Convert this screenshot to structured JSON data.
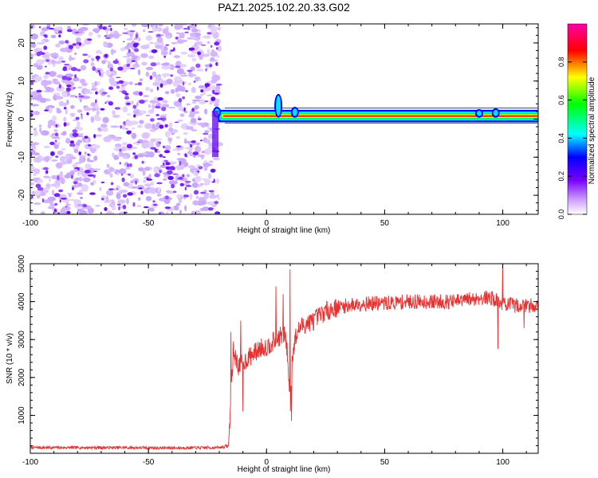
{
  "title": "PAZ1.2025.102.20.33.G02",
  "chart_data": [
    {
      "type": "heatmap",
      "xlabel": "Height of straight line (km)",
      "ylabel": "Frequency (Hz)",
      "xlim": [
        -100,
        115
      ],
      "ylim": [
        -25,
        25
      ],
      "xticks": [
        -100,
        -50,
        0,
        50,
        100
      ],
      "yticks": [
        -20,
        -10,
        0,
        10,
        20
      ],
      "noise_region_x": [
        -100,
        -20
      ],
      "signal_start_x": -21,
      "signal_line_frequency_hz": 0.8,
      "signal_bumps": [
        {
          "x": -21,
          "f": 1.8
        },
        {
          "x": 5,
          "f": 3.5
        },
        {
          "x": 12,
          "f": 1.8
        },
        {
          "x": 90,
          "f": 1.5
        },
        {
          "x": 97,
          "f": 1.6
        }
      ],
      "colorbar": {
        "label": "Normalized spectral amplitude",
        "range": [
          0,
          1
        ],
        "ticks": [
          "0.0",
          "0.2",
          "0.4",
          "0.6",
          "0.8"
        ],
        "colors": [
          "#ffffff",
          "#cc99ff",
          "#7700ff",
          "#0000ff",
          "#00ffff",
          "#00ff00",
          "#ffff00",
          "#ff0000",
          "#ff00aa"
        ]
      }
    },
    {
      "type": "line",
      "xlabel": "Height of straight line (km)",
      "ylabel": "SNR (10 * v/v)",
      "xlim": [
        -100,
        115
      ],
      "ylim": [
        0,
        5000
      ],
      "xticks": [
        -100,
        -50,
        0,
        50,
        100
      ],
      "yticks": [
        1000,
        2000,
        3000,
        4000,
        5000
      ],
      "series": [
        {
          "name": "SNR",
          "color": "#e83030",
          "x": [
            -100,
            -80,
            -60,
            -40,
            -20,
            -16,
            -15,
            -14,
            -13,
            -12,
            -10,
            -8,
            -6,
            -4,
            -2,
            0,
            2,
            4,
            6,
            8,
            9,
            10,
            11,
            12,
            14,
            16,
            20,
            25,
            30,
            40,
            50,
            60,
            70,
            80,
            85,
            90,
            95,
            100,
            105,
            110,
            115
          ],
          "y": [
            150,
            150,
            150,
            140,
            150,
            200,
            1700,
            2700,
            2500,
            2300,
            2400,
            2500,
            2600,
            2700,
            2800,
            2800,
            2900,
            3000,
            3100,
            3100,
            2500,
            1200,
            2600,
            3000,
            3300,
            3400,
            3500,
            3750,
            3850,
            3950,
            3950,
            4000,
            4000,
            4000,
            4050,
            4100,
            4100,
            3950,
            3900,
            3900,
            3900
          ]
        }
      ],
      "spikes": [
        {
          "x": -15,
          "y": 3200
        },
        {
          "x": -11,
          "y": 3500
        },
        {
          "x": -10,
          "y": 1100
        },
        {
          "x": 4,
          "y": 4400
        },
        {
          "x": 7,
          "y": 4200
        },
        {
          "x": 10,
          "y": 4850
        },
        {
          "x": 10.5,
          "y": 850
        },
        {
          "x": 100,
          "y": 5000
        },
        {
          "x": 98,
          "y": 2750
        },
        {
          "x": 109,
          "y": 3300
        }
      ]
    }
  ]
}
